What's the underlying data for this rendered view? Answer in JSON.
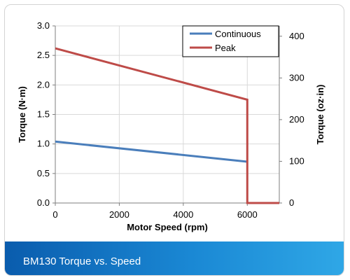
{
  "chart_data": {
    "type": "line",
    "xlabel": "Motor Speed (rpm)",
    "ylabel": "Torque (N·m)",
    "y2label": "Torque (oz·in)",
    "xlim": [
      0,
      7000
    ],
    "ylim": [
      0,
      3.0
    ],
    "y2lim": [
      0,
      424.8
    ],
    "x_ticks": [
      0,
      2000,
      4000,
      6000
    ],
    "y_ticks": [
      0.0,
      0.5,
      1.0,
      1.5,
      2.0,
      2.5,
      3.0
    ],
    "y2_ticks": [
      0,
      100,
      200,
      300,
      400
    ],
    "grid": true,
    "legend_position": "top-right",
    "series": [
      {
        "name": "Continuous",
        "color": "#4a7ebb",
        "points": [
          [
            0,
            1.04
          ],
          [
            6000,
            0.7
          ]
        ]
      },
      {
        "name": "Peak",
        "color": "#be4b48",
        "points": [
          [
            0,
            2.62
          ],
          [
            6000,
            1.75
          ],
          [
            6000,
            0
          ],
          [
            7000,
            0
          ]
        ]
      }
    ]
  },
  "caption": {
    "text": "BM130 Torque vs. Speed"
  }
}
